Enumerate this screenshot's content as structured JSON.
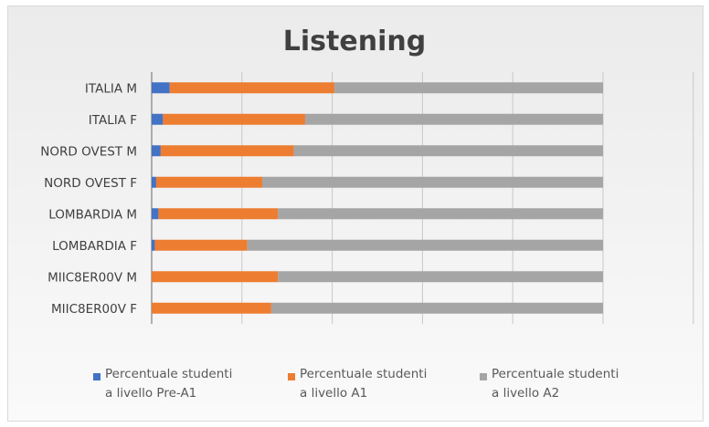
{
  "chart_data": {
    "type": "bar",
    "orientation": "horizontal",
    "stacked": true,
    "title": "Listening",
    "xlabel": "",
    "ylabel": "",
    "xlim": [
      0,
      100
    ],
    "grid": true,
    "legend_position": "bottom",
    "categories": [
      "ITALIA M",
      "ITALIA F",
      "NORD OVEST M",
      "NORD OVEST F",
      "LOMBARDIA M",
      "LOMBARDIA F",
      "MIIC8ER00V M",
      "MIIC8ER00V F"
    ],
    "series": [
      {
        "name": "Percentuale studenti a livello Pre-A1",
        "legend_lines": [
          "Percentuale studenti",
          "a livello Pre-A1"
        ],
        "color": "#4472c4",
        "values": [
          4,
          2.5,
          2,
          1,
          1.5,
          0.7,
          0,
          0
        ]
      },
      {
        "name": "Percentuale studenti a livello A1",
        "legend_lines": [
          "Percentuale studenti",
          "a livello A1"
        ],
        "color": "#ed7d31",
        "values": [
          36.5,
          31.5,
          29.5,
          23.5,
          26.5,
          20.5,
          28,
          26.5
        ]
      },
      {
        "name": "Percentuale studenti a livello A2",
        "legend_lines": [
          "Percentuale studenti",
          "a livello A2"
        ],
        "color": "#a5a5a5",
        "values": [
          59.5,
          66,
          68.5,
          75.5,
          72,
          78.8,
          72,
          73.5
        ]
      }
    ]
  }
}
